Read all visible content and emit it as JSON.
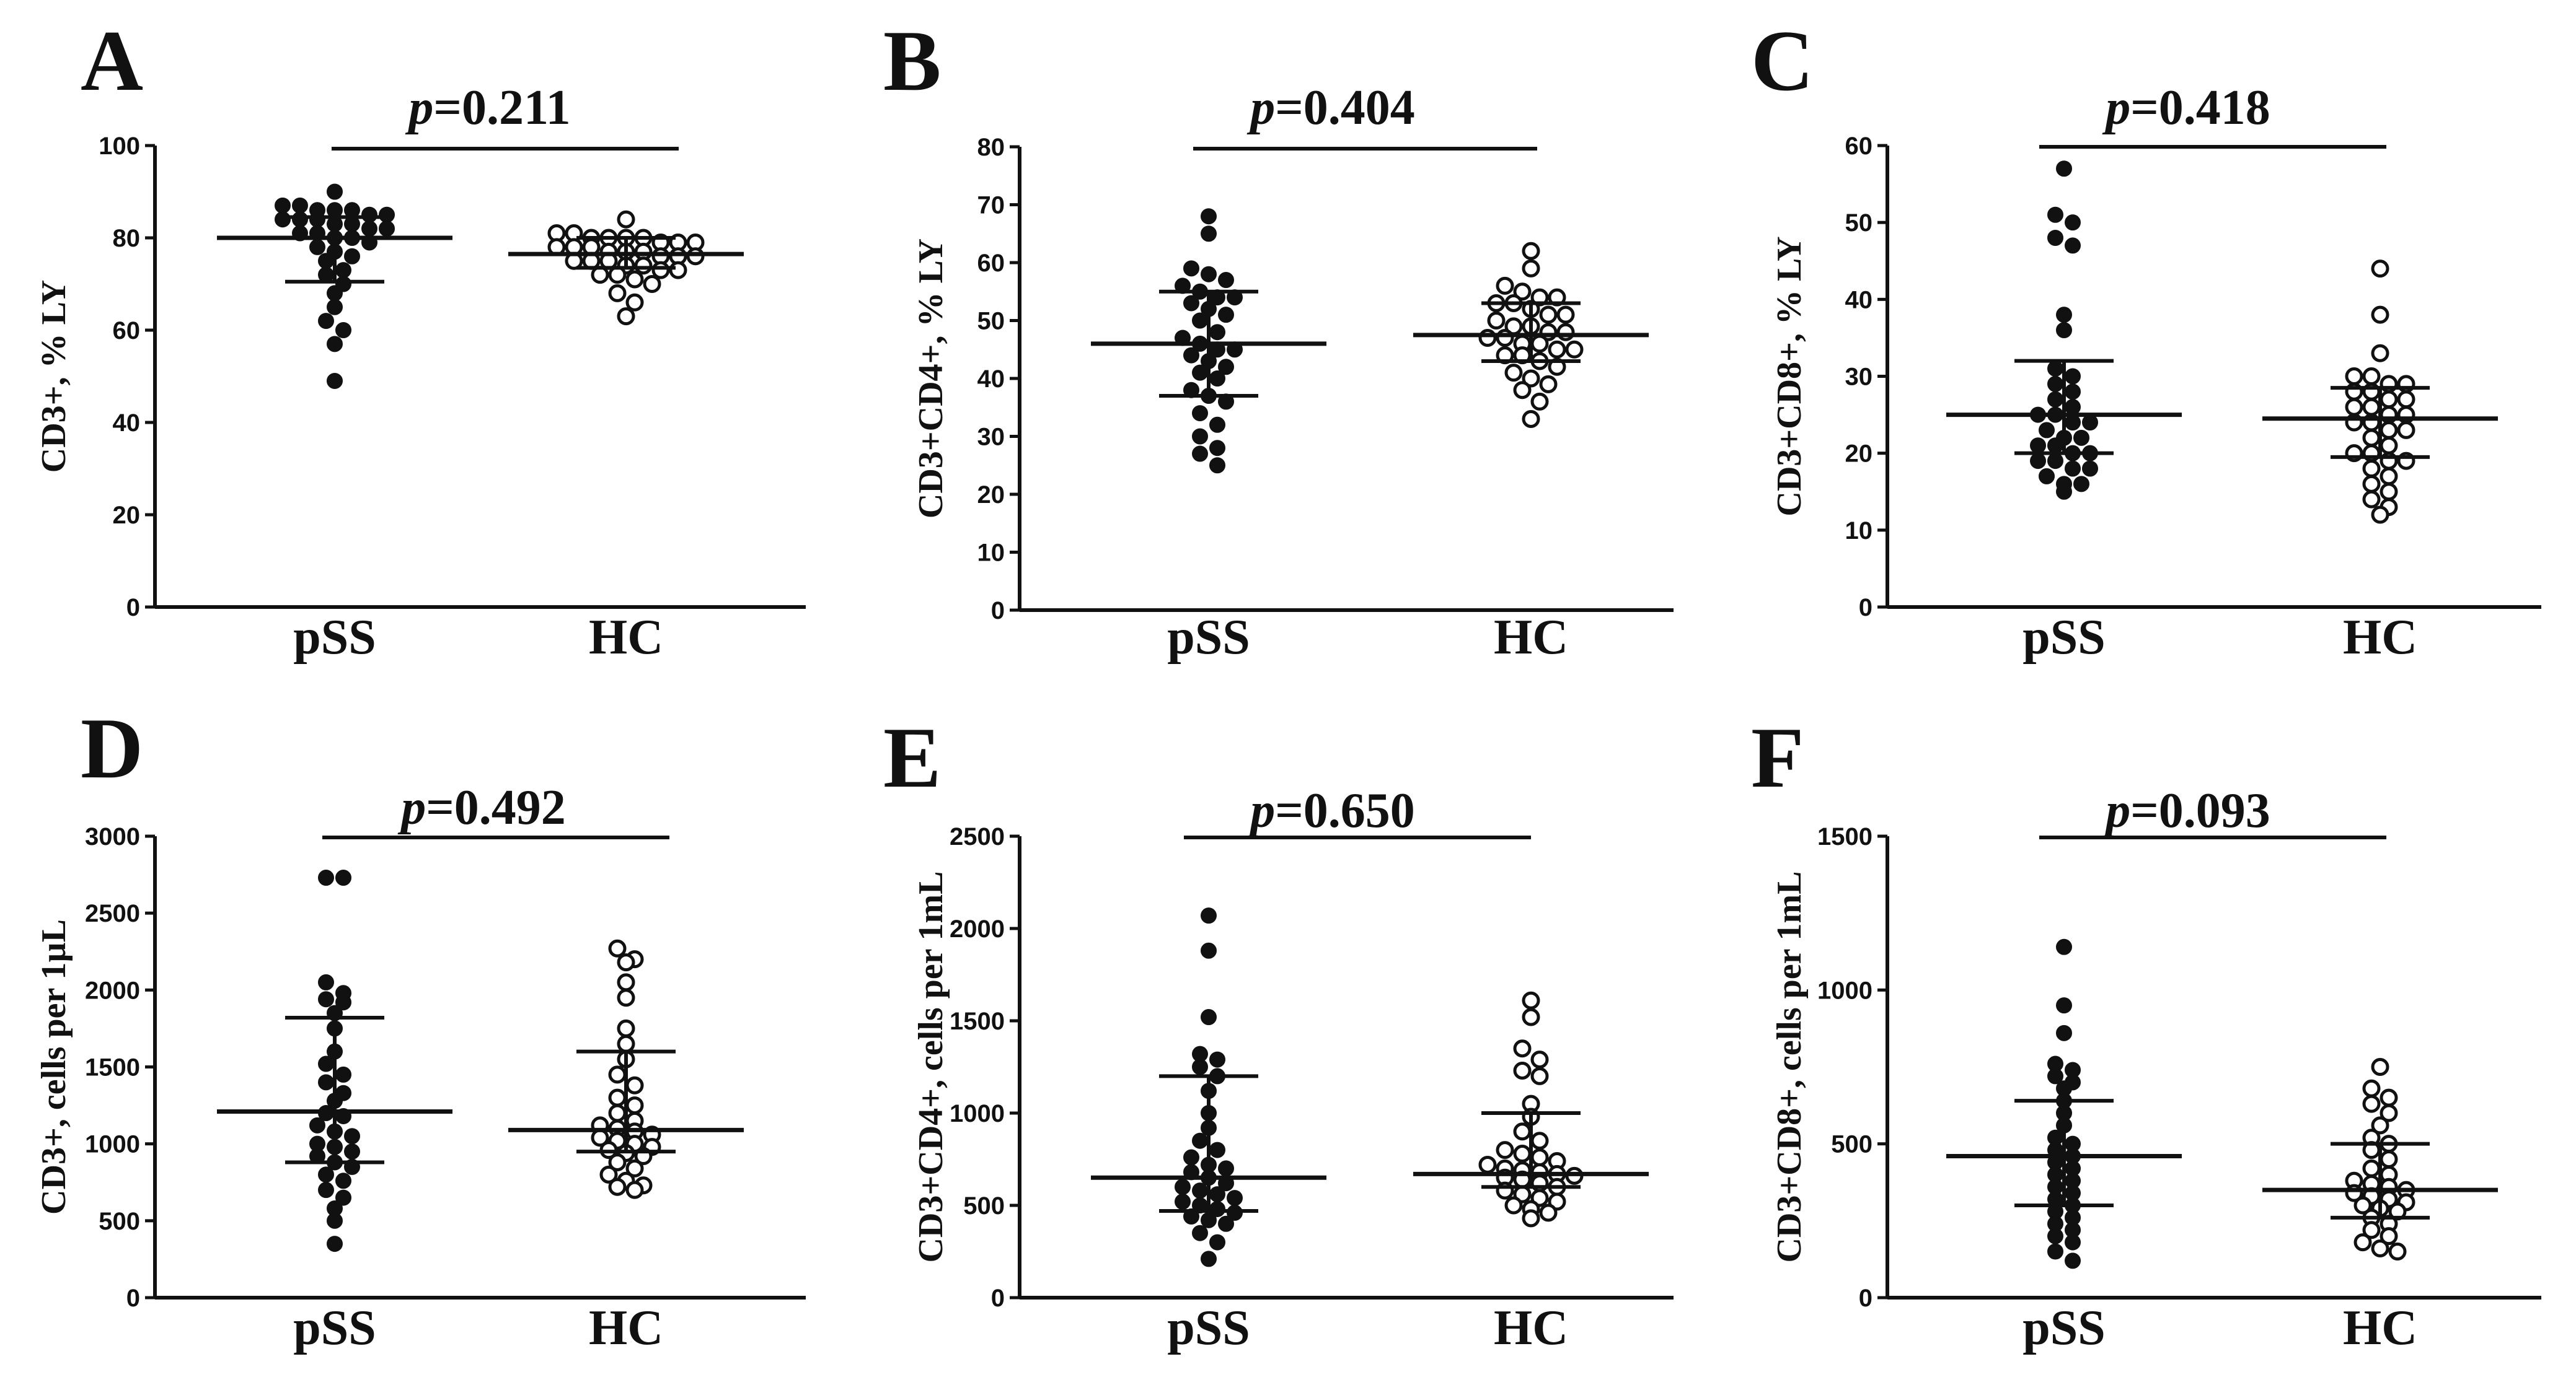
{
  "chart_data": [
    {
      "type": "scatter",
      "panel": "A",
      "p_label": "p",
      "p_value": "=0.211",
      "ylabel": "CD3+, % LY",
      "ylim": [
        0,
        100
      ],
      "yticks": [
        "0",
        "20",
        "40",
        "60",
        "80",
        "100"
      ],
      "categories": [
        "pSS",
        "HC"
      ],
      "series": [
        {
          "name": "pSS",
          "marker": "filled",
          "mean": 80,
          "sd_low": 70.5,
          "sd_high": 84.5,
          "values": [
            90,
            87,
            87,
            86,
            86,
            86,
            85,
            85,
            84,
            84,
            84,
            83,
            83,
            82,
            82,
            81,
            81,
            80,
            80,
            79,
            78,
            77,
            76,
            75,
            73,
            72,
            70,
            68,
            65,
            62,
            60,
            57,
            49
          ]
        },
        {
          "name": "HC",
          "marker": "open",
          "mean": 76.5,
          "sd_low": 73.5,
          "sd_high": 80,
          "values": [
            84,
            81,
            81,
            80,
            80,
            80,
            80,
            79,
            79,
            79,
            78,
            78,
            78,
            77,
            77,
            77,
            76,
            76,
            76,
            75,
            75,
            75,
            74,
            74,
            73,
            73,
            72,
            72,
            71,
            70,
            68,
            66,
            63
          ]
        }
      ]
    },
    {
      "type": "scatter",
      "panel": "B",
      "p_label": "p",
      "p_value": "=0.404",
      "ylabel": "CD3+CD4+, % LY",
      "ylim": [
        0,
        80
      ],
      "yticks": [
        "0",
        "10",
        "20",
        "30",
        "40",
        "50",
        "60",
        "70",
        "80"
      ],
      "categories": [
        "pSS",
        "HC"
      ],
      "series": [
        {
          "name": "pSS",
          "marker": "filled",
          "mean": 46,
          "sd_low": 37,
          "sd_high": 55,
          "values": [
            68,
            65,
            59,
            58,
            57,
            56,
            55,
            54,
            54,
            53,
            52,
            51,
            50,
            48,
            47,
            46,
            45,
            45,
            44,
            43,
            42,
            41,
            40,
            38,
            37,
            36,
            34,
            32,
            30,
            28,
            27,
            25
          ]
        },
        {
          "name": "HC",
          "marker": "open",
          "mean": 47.5,
          "sd_low": 43,
          "sd_high": 53,
          "values": [
            62,
            59,
            56,
            55,
            54,
            54,
            53,
            53,
            52,
            51,
            51,
            50,
            49,
            49,
            48,
            48,
            47,
            47,
            46,
            46,
            45,
            45,
            44,
            44,
            43,
            42,
            41,
            40,
            39,
            38,
            36,
            33
          ]
        }
      ]
    },
    {
      "type": "scatter",
      "panel": "C",
      "p_label": "p",
      "p_value": "=0.418",
      "ylabel": "CD3+CD8+, % LY",
      "ylim": [
        0,
        60
      ],
      "yticks": [
        "0",
        "10",
        "20",
        "30",
        "40",
        "50",
        "60"
      ],
      "categories": [
        "pSS",
        "HC"
      ],
      "series": [
        {
          "name": "pSS",
          "marker": "filled",
          "mean": 25,
          "sd_low": 20,
          "sd_high": 32,
          "values": [
            57,
            51,
            50,
            48,
            47,
            38,
            36,
            31,
            30,
            29,
            28,
            27,
            26,
            25,
            25,
            24,
            24,
            23,
            22,
            22,
            21,
            21,
            20,
            20,
            19,
            19,
            18,
            18,
            17,
            16,
            16,
            15
          ]
        },
        {
          "name": "HC",
          "marker": "open",
          "mean": 24.5,
          "sd_low": 19.5,
          "sd_high": 28.5,
          "values": [
            44,
            38,
            33,
            30,
            30,
            29,
            29,
            28,
            28,
            27,
            27,
            26,
            26,
            25,
            25,
            24,
            24,
            23,
            23,
            22,
            21,
            20,
            20,
            19,
            19,
            18,
            17,
            16,
            15,
            14,
            13,
            12
          ]
        }
      ]
    },
    {
      "type": "scatter",
      "panel": "D",
      "p_label": "p",
      "p_value": "=0.492",
      "ylabel": "CD3+, cells per 1µL",
      "ylim": [
        0,
        3000
      ],
      "yticks": [
        "0",
        "500",
        "1000",
        "1500",
        "2000",
        "2500",
        "3000"
      ],
      "categories": [
        "pSS",
        "HC"
      ],
      "series": [
        {
          "name": "pSS",
          "marker": "filled",
          "mean": 1210,
          "sd_low": 880,
          "sd_high": 1820,
          "values": [
            2730,
            2730,
            2050,
            1980,
            1940,
            1920,
            1850,
            1750,
            1600,
            1520,
            1450,
            1400,
            1330,
            1280,
            1200,
            1180,
            1120,
            1080,
            1050,
            1000,
            980,
            950,
            920,
            880,
            850,
            800,
            760,
            700,
            650,
            580,
            500,
            350
          ]
        },
        {
          "name": "HC",
          "marker": "open",
          "mean": 1090,
          "sd_low": 950,
          "sd_high": 1600,
          "values": [
            2270,
            2200,
            2180,
            2050,
            1950,
            1750,
            1650,
            1550,
            1450,
            1380,
            1300,
            1250,
            1200,
            1150,
            1120,
            1100,
            1080,
            1060,
            1040,
            1020,
            1000,
            980,
            960,
            940,
            920,
            880,
            840,
            800,
            760,
            730,
            720,
            700
          ]
        }
      ]
    },
    {
      "type": "scatter",
      "panel": "E",
      "p_label": "p",
      "p_value": "=0.650",
      "ylabel": "CD3+CD4+, cells per 1mL",
      "ylim": [
        0,
        2500
      ],
      "yticks": [
        "0",
        "500",
        "1000",
        "1500",
        "2000",
        "2500"
      ],
      "categories": [
        "pSS",
        "HC"
      ],
      "series": [
        {
          "name": "pSS",
          "marker": "filled",
          "mean": 650,
          "sd_low": 470,
          "sd_high": 1200,
          "values": [
            2070,
            1880,
            1520,
            1320,
            1290,
            1250,
            1200,
            1120,
            1000,
            920,
            850,
            800,
            760,
            720,
            700,
            680,
            650,
            620,
            600,
            580,
            560,
            540,
            520,
            500,
            480,
            460,
            440,
            420,
            400,
            350,
            300,
            210
          ]
        },
        {
          "name": "HC",
          "marker": "open",
          "mean": 670,
          "sd_low": 600,
          "sd_high": 1000,
          "values": [
            1610,
            1520,
            1350,
            1290,
            1230,
            1200,
            1050,
            980,
            900,
            850,
            800,
            780,
            760,
            740,
            720,
            700,
            690,
            680,
            670,
            660,
            650,
            640,
            620,
            600,
            580,
            560,
            540,
            520,
            500,
            480,
            460,
            430
          ]
        }
      ]
    },
    {
      "type": "scatter",
      "panel": "F",
      "p_label": "p",
      "p_value": "=0.093",
      "ylabel": "CD3+CD8+, cells per 1mL",
      "ylim": [
        0,
        1500
      ],
      "yticks": [
        "0",
        "500",
        "1000",
        "1500"
      ],
      "categories": [
        "pSS",
        "HC"
      ],
      "series": [
        {
          "name": "pSS",
          "marker": "filled",
          "mean": 460,
          "sd_low": 300,
          "sd_high": 640,
          "values": [
            1140,
            950,
            860,
            760,
            740,
            720,
            700,
            680,
            640,
            600,
            560,
            520,
            500,
            480,
            460,
            440,
            420,
            400,
            380,
            360,
            340,
            320,
            300,
            280,
            260,
            240,
            220,
            200,
            180,
            150,
            120
          ]
        },
        {
          "name": "HC",
          "marker": "open",
          "mean": 350,
          "sd_low": 260,
          "sd_high": 500,
          "values": [
            750,
            680,
            650,
            630,
            600,
            560,
            520,
            500,
            480,
            450,
            420,
            400,
            380,
            370,
            360,
            350,
            340,
            330,
            320,
            310,
            300,
            290,
            280,
            260,
            240,
            220,
            200,
            180,
            160,
            150
          ]
        }
      ]
    }
  ]
}
